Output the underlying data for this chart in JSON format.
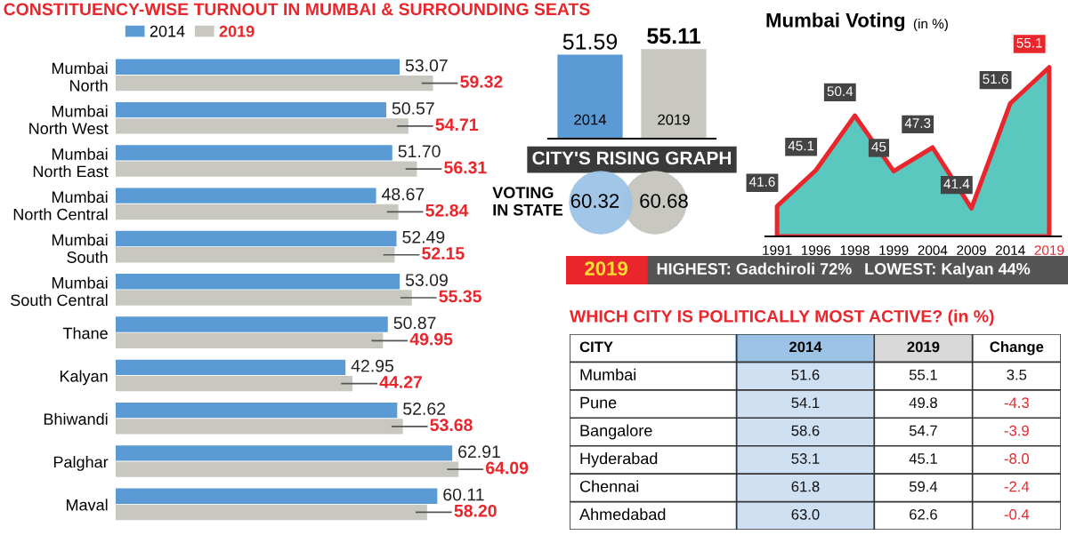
{
  "chart_data": [
    {
      "type": "bar",
      "orientation": "horizontal",
      "title": "CONSTITUENCY-WISE TURNOUT IN MUMBAI & SURROUNDING SEATS",
      "categories": [
        "Mumbai\nNorth",
        "Mumbai\nNorth West",
        "Mumbai\nNorth East",
        "Mumbai\nNorth Central",
        "Mumbai\nSouth",
        "Mumbai\nSouth Central",
        "Thane",
        "Kalyan",
        "Bhiwandi",
        "Palghar",
        "Maval"
      ],
      "series": [
        {
          "name": "2014",
          "color": "#5b9bd5",
          "values": [
            53.07,
            50.57,
            51.7,
            48.67,
            52.49,
            53.09,
            50.87,
            42.95,
            52.62,
            62.91,
            60.11
          ],
          "value_labels": [
            "53.07",
            "50.57",
            "51.70",
            "48.67",
            "52.49",
            "53.09",
            "50.87",
            "42.95",
            "52.62",
            "62.91",
            "60.11"
          ]
        },
        {
          "name": "2019",
          "color": "#c8c8c0",
          "values": [
            59.32,
            54.71,
            56.31,
            52.84,
            52.15,
            55.35,
            49.95,
            44.27,
            53.68,
            64.09,
            58.2
          ],
          "value_labels": [
            "59.32",
            "54.71",
            "56.31",
            "52.84",
            "52.15",
            "55.35",
            "49.95",
            "44.27",
            "53.68",
            "64.09",
            "58.20"
          ]
        }
      ],
      "legend": "top left",
      "tick_labels": "y"
    },
    {
      "type": "bar",
      "title": "CITY'S RISING GRAPH",
      "categories": [
        "2014",
        "2019"
      ],
      "values": [
        51.59,
        55.11
      ],
      "colors": [
        "#5b9bd5",
        "#c8c8c0"
      ],
      "data_labels": true,
      "tick_labels": "x"
    },
    {
      "type": "other",
      "title": "VOTING IN STATE",
      "annotations": [
        "60.32",
        "60.68"
      ],
      "colors": [
        "#9cc3e6",
        "#c8c8c0"
      ]
    },
    {
      "type": "area",
      "title": "Mumbai Voting",
      "subtitle": "(in %)",
      "categories": [
        "1991",
        "1996",
        "1998",
        "1999",
        "2004",
        "2009",
        "2014",
        "2019"
      ],
      "values": [
        41.6,
        45.1,
        50.4,
        45,
        47.3,
        41.4,
        51.6,
        55.1
      ],
      "color": "#5bc8c0",
      "data_labels": true,
      "tick_labels": "x"
    },
    {
      "type": "other",
      "annotations": [
        "2019",
        "HIGHEST: Gadchiroli 72%",
        "LOWEST: Kalyan 44%"
      ]
    },
    {
      "type": "other",
      "title": "WHICH CITY IS POLITICALLY MOST ACTIVE? (in %)",
      "categories": [
        "CITY",
        "2014",
        "2019",
        "Change"
      ],
      "y_categories": [
        "Mumbai",
        "Pune",
        "Bangalore",
        "Hyderabad",
        "Chennai",
        "Ahmedabad"
      ],
      "cell_labels": [
        [
          "51.6",
          "55.1",
          "3.5"
        ],
        [
          "54.1",
          "49.8",
          "-4.3"
        ],
        [
          "58.6",
          "54.7",
          "-3.9"
        ],
        [
          "53.1",
          "45.1",
          "-8.0"
        ],
        [
          "61.8",
          "59.4",
          "-2.4"
        ],
        [
          "63.0",
          "62.6",
          "-0.4"
        ]
      ]
    }
  ]
}
